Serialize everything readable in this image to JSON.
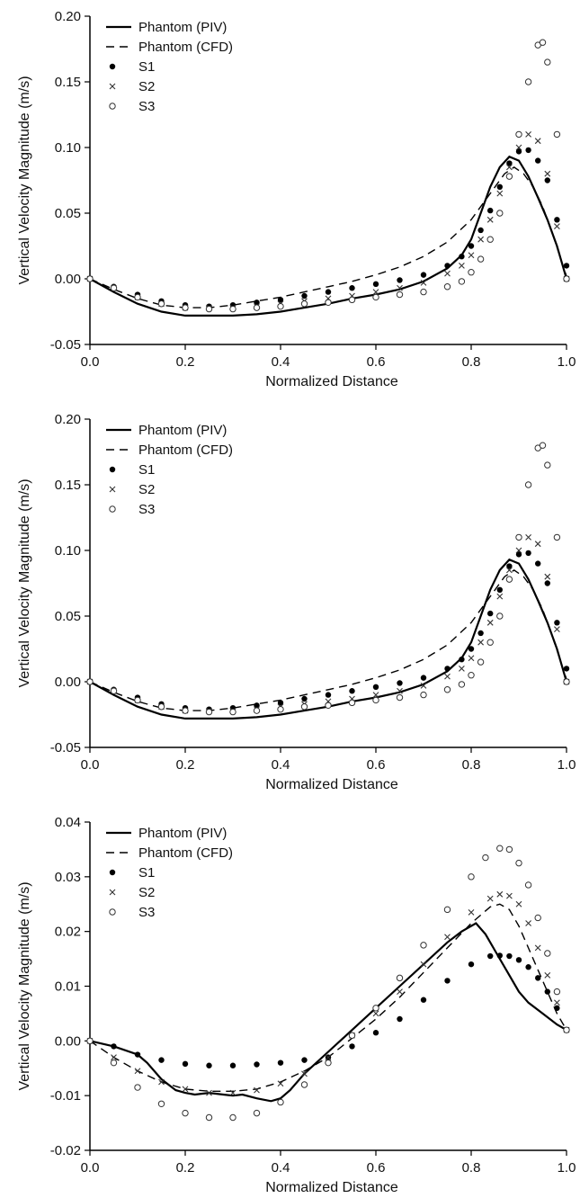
{
  "chart_data": [
    {
      "type": "line",
      "xlabel": "Normalized Distance",
      "ylabel": "Vertical Velocity Magnitude (m/s)",
      "xlim": [
        0,
        1
      ],
      "ylim": [
        -0.05,
        0.2
      ],
      "x_ticks": [
        "0.0",
        "0.2",
        "0.4",
        "0.6",
        "0.8",
        "1.0"
      ],
      "y_ticks": [
        "-0.05",
        "0.00",
        "0.05",
        "0.10",
        "0.15",
        "0.20"
      ],
      "legend_position": "top-left",
      "series": [
        {
          "name": "Phantom (PIV)",
          "style": "solid-line",
          "x": [
            0,
            0.05,
            0.1,
            0.15,
            0.2,
            0.25,
            0.3,
            0.35,
            0.4,
            0.45,
            0.5,
            0.55,
            0.6,
            0.65,
            0.7,
            0.75,
            0.78,
            0.8,
            0.82,
            0.84,
            0.86,
            0.88,
            0.9,
            0.92,
            0.94,
            0.96,
            0.98,
            1.0
          ],
          "y": [
            0,
            -0.01,
            -0.019,
            -0.025,
            -0.028,
            -0.028,
            -0.028,
            -0.027,
            -0.025,
            -0.022,
            -0.019,
            -0.015,
            -0.012,
            -0.008,
            -0.002,
            0.008,
            0.018,
            0.03,
            0.05,
            0.07,
            0.085,
            0.093,
            0.09,
            0.078,
            0.062,
            0.045,
            0.025,
            0.0
          ]
        },
        {
          "name": "Phantom (CFD)",
          "style": "dashed-line",
          "x": [
            0,
            0.05,
            0.1,
            0.15,
            0.2,
            0.25,
            0.3,
            0.35,
            0.4,
            0.45,
            0.5,
            0.55,
            0.6,
            0.65,
            0.7,
            0.75,
            0.8,
            0.84,
            0.87,
            0.89,
            0.91,
            0.93,
            0.95,
            0.97,
            1.0
          ],
          "y": [
            0,
            -0.008,
            -0.015,
            -0.02,
            -0.022,
            -0.022,
            -0.02,
            -0.017,
            -0.014,
            -0.01,
            -0.006,
            -0.002,
            0.003,
            0.009,
            0.017,
            0.028,
            0.045,
            0.065,
            0.08,
            0.085,
            0.08,
            0.07,
            0.055,
            0.035,
            0.002
          ]
        },
        {
          "name": "S1",
          "style": "filled-circle",
          "x": [
            0,
            0.05,
            0.1,
            0.15,
            0.2,
            0.25,
            0.3,
            0.35,
            0.4,
            0.45,
            0.5,
            0.55,
            0.6,
            0.65,
            0.7,
            0.75,
            0.78,
            0.8,
            0.82,
            0.84,
            0.86,
            0.88,
            0.9,
            0.92,
            0.94,
            0.96,
            0.98,
            1.0
          ],
          "y": [
            0,
            -0.006,
            -0.012,
            -0.017,
            -0.02,
            -0.021,
            -0.02,
            -0.018,
            -0.016,
            -0.013,
            -0.01,
            -0.007,
            -0.004,
            -0.001,
            0.003,
            0.01,
            0.017,
            0.025,
            0.037,
            0.052,
            0.07,
            0.088,
            0.097,
            0.098,
            0.09,
            0.075,
            0.045,
            0.01
          ]
        },
        {
          "name": "S2",
          "style": "cross",
          "x": [
            0,
            0.05,
            0.1,
            0.15,
            0.2,
            0.25,
            0.3,
            0.35,
            0.4,
            0.45,
            0.5,
            0.55,
            0.6,
            0.65,
            0.7,
            0.75,
            0.78,
            0.8,
            0.82,
            0.84,
            0.86,
            0.88,
            0.9,
            0.92,
            0.94,
            0.96,
            0.98,
            1.0
          ],
          "y": [
            0,
            -0.007,
            -0.014,
            -0.019,
            -0.022,
            -0.022,
            -0.022,
            -0.021,
            -0.019,
            -0.017,
            -0.015,
            -0.013,
            -0.01,
            -0.007,
            -0.003,
            0.004,
            0.01,
            0.018,
            0.03,
            0.045,
            0.065,
            0.085,
            0.1,
            0.11,
            0.105,
            0.08,
            0.04,
            0.0
          ]
        },
        {
          "name": "S3",
          "style": "open-circle",
          "x": [
            0,
            0.05,
            0.1,
            0.15,
            0.2,
            0.25,
            0.3,
            0.35,
            0.4,
            0.45,
            0.5,
            0.55,
            0.6,
            0.65,
            0.7,
            0.75,
            0.78,
            0.8,
            0.82,
            0.84,
            0.86,
            0.88,
            0.9,
            0.92,
            0.94,
            0.95,
            0.96,
            0.98,
            1.0
          ],
          "y": [
            0,
            -0.007,
            -0.014,
            -0.019,
            -0.022,
            -0.023,
            -0.023,
            -0.022,
            -0.021,
            -0.019,
            -0.018,
            -0.016,
            -0.014,
            -0.012,
            -0.01,
            -0.006,
            -0.002,
            0.005,
            0.015,
            0.03,
            0.05,
            0.078,
            0.11,
            0.15,
            0.178,
            0.18,
            0.165,
            0.11,
            0.0
          ]
        }
      ]
    },
    {
      "type": "line",
      "xlabel": "Normalized Distance",
      "ylabel": "Vertical Velocity Magnitude (m/s)",
      "xlim": [
        0,
        1
      ],
      "ylim": [
        -0.05,
        0.2
      ],
      "x_ticks": [
        "0.0",
        "0.2",
        "0.4",
        "0.6",
        "0.8",
        "1.0"
      ],
      "y_ticks": [
        "-0.05",
        "0.00",
        "0.05",
        "0.10",
        "0.15",
        "0.20"
      ],
      "legend_position": "top-left",
      "series": [
        {
          "name": "Phantom (PIV)",
          "style": "solid-line",
          "x": [
            0,
            0.05,
            0.1,
            0.15,
            0.2,
            0.25,
            0.3,
            0.35,
            0.4,
            0.45,
            0.5,
            0.55,
            0.6,
            0.65,
            0.7,
            0.75,
            0.78,
            0.8,
            0.82,
            0.84,
            0.86,
            0.88,
            0.9,
            0.92,
            0.94,
            0.96,
            0.98,
            1.0
          ],
          "y": [
            0,
            -0.01,
            -0.019,
            -0.025,
            -0.028,
            -0.028,
            -0.028,
            -0.027,
            -0.025,
            -0.022,
            -0.019,
            -0.015,
            -0.012,
            -0.008,
            -0.002,
            0.008,
            0.018,
            0.03,
            0.05,
            0.07,
            0.085,
            0.093,
            0.09,
            0.078,
            0.062,
            0.045,
            0.025,
            0.0
          ]
        },
        {
          "name": "Phantom (CFD)",
          "style": "dashed-line",
          "x": [
            0,
            0.05,
            0.1,
            0.15,
            0.2,
            0.25,
            0.3,
            0.35,
            0.4,
            0.45,
            0.5,
            0.55,
            0.6,
            0.65,
            0.7,
            0.75,
            0.8,
            0.84,
            0.87,
            0.89,
            0.91,
            0.93,
            0.95,
            0.97,
            1.0
          ],
          "y": [
            0,
            -0.008,
            -0.015,
            -0.02,
            -0.022,
            -0.022,
            -0.02,
            -0.017,
            -0.014,
            -0.01,
            -0.006,
            -0.002,
            0.003,
            0.009,
            0.017,
            0.028,
            0.045,
            0.065,
            0.08,
            0.085,
            0.08,
            0.07,
            0.055,
            0.035,
            0.002
          ]
        },
        {
          "name": "S1",
          "style": "filled-circle",
          "x": [
            0,
            0.05,
            0.1,
            0.15,
            0.2,
            0.25,
            0.3,
            0.35,
            0.4,
            0.45,
            0.5,
            0.55,
            0.6,
            0.65,
            0.7,
            0.75,
            0.78,
            0.8,
            0.82,
            0.84,
            0.86,
            0.88,
            0.9,
            0.92,
            0.94,
            0.96,
            0.98,
            1.0
          ],
          "y": [
            0,
            -0.006,
            -0.012,
            -0.017,
            -0.02,
            -0.021,
            -0.02,
            -0.018,
            -0.016,
            -0.013,
            -0.01,
            -0.007,
            -0.004,
            -0.001,
            0.003,
            0.01,
            0.017,
            0.025,
            0.037,
            0.052,
            0.07,
            0.088,
            0.097,
            0.098,
            0.09,
            0.075,
            0.045,
            0.01
          ]
        },
        {
          "name": "S2",
          "style": "cross",
          "x": [
            0,
            0.05,
            0.1,
            0.15,
            0.2,
            0.25,
            0.3,
            0.35,
            0.4,
            0.45,
            0.5,
            0.55,
            0.6,
            0.65,
            0.7,
            0.75,
            0.78,
            0.8,
            0.82,
            0.84,
            0.86,
            0.88,
            0.9,
            0.92,
            0.94,
            0.96,
            0.98,
            1.0
          ],
          "y": [
            0,
            -0.007,
            -0.014,
            -0.019,
            -0.022,
            -0.022,
            -0.022,
            -0.021,
            -0.019,
            -0.017,
            -0.015,
            -0.013,
            -0.01,
            -0.007,
            -0.003,
            0.004,
            0.01,
            0.018,
            0.03,
            0.045,
            0.065,
            0.085,
            0.1,
            0.11,
            0.105,
            0.08,
            0.04,
            0.0
          ]
        },
        {
          "name": "S3",
          "style": "open-circle",
          "x": [
            0,
            0.05,
            0.1,
            0.15,
            0.2,
            0.25,
            0.3,
            0.35,
            0.4,
            0.45,
            0.5,
            0.55,
            0.6,
            0.65,
            0.7,
            0.75,
            0.78,
            0.8,
            0.82,
            0.84,
            0.86,
            0.88,
            0.9,
            0.92,
            0.94,
            0.95,
            0.96,
            0.98,
            1.0
          ],
          "y": [
            0,
            -0.007,
            -0.014,
            -0.019,
            -0.022,
            -0.023,
            -0.023,
            -0.022,
            -0.021,
            -0.019,
            -0.018,
            -0.016,
            -0.014,
            -0.012,
            -0.01,
            -0.006,
            -0.002,
            0.005,
            0.015,
            0.03,
            0.05,
            0.078,
            0.11,
            0.15,
            0.178,
            0.18,
            0.165,
            0.11,
            0.0
          ]
        }
      ]
    },
    {
      "type": "line",
      "xlabel": "Normalized Distance",
      "ylabel": "Vertical Velocity Magnitude (m/s)",
      "xlim": [
        0,
        1
      ],
      "ylim": [
        -0.02,
        0.04
      ],
      "x_ticks": [
        "0.0",
        "0.2",
        "0.4",
        "0.6",
        "0.8",
        "1.0"
      ],
      "y_ticks": [
        "-0.02",
        "-0.01",
        "0.00",
        "0.01",
        "0.02",
        "0.03",
        "0.04"
      ],
      "legend_position": "top-left",
      "series": [
        {
          "name": "Phantom (PIV)",
          "style": "solid-line",
          "x": [
            0,
            0.05,
            0.1,
            0.12,
            0.15,
            0.18,
            0.2,
            0.22,
            0.25,
            0.28,
            0.3,
            0.32,
            0.35,
            0.38,
            0.4,
            0.42,
            0.45,
            0.5,
            0.55,
            0.6,
            0.65,
            0.7,
            0.75,
            0.78,
            0.81,
            0.83,
            0.85,
            0.88,
            0.9,
            0.92,
            0.95,
            0.98,
            1.0
          ],
          "y": [
            0,
            -0.001,
            -0.0025,
            -0.004,
            -0.007,
            -0.009,
            -0.0095,
            -0.0098,
            -0.0095,
            -0.0098,
            -0.01,
            -0.0098,
            -0.0105,
            -0.011,
            -0.0105,
            -0.009,
            -0.006,
            -0.002,
            0.002,
            0.006,
            0.01,
            0.014,
            0.018,
            0.02,
            0.0215,
            0.0195,
            0.0165,
            0.012,
            0.009,
            0.007,
            0.005,
            0.003,
            0.002
          ]
        },
        {
          "name": "Phantom (CFD)",
          "style": "dashed-line",
          "x": [
            0,
            0.05,
            0.1,
            0.15,
            0.2,
            0.25,
            0.3,
            0.35,
            0.4,
            0.45,
            0.5,
            0.55,
            0.6,
            0.65,
            0.7,
            0.75,
            0.8,
            0.84,
            0.86,
            0.88,
            0.9,
            0.92,
            0.94,
            0.96,
            0.98,
            1.0
          ],
          "y": [
            0,
            -0.003,
            -0.0055,
            -0.0075,
            -0.0088,
            -0.0092,
            -0.0092,
            -0.0088,
            -0.0075,
            -0.0055,
            -0.003,
            0.0005,
            0.004,
            0.008,
            0.0125,
            0.017,
            0.0215,
            0.0245,
            0.025,
            0.024,
            0.021,
            0.017,
            0.013,
            0.009,
            0.005,
            0.002
          ]
        },
        {
          "name": "S1",
          "style": "filled-circle",
          "x": [
            0,
            0.05,
            0.1,
            0.15,
            0.2,
            0.25,
            0.3,
            0.35,
            0.4,
            0.45,
            0.5,
            0.55,
            0.6,
            0.65,
            0.7,
            0.75,
            0.8,
            0.84,
            0.86,
            0.88,
            0.9,
            0.92,
            0.94,
            0.96,
            0.98,
            1.0
          ],
          "y": [
            0,
            -0.001,
            -0.0025,
            -0.0035,
            -0.0042,
            -0.0045,
            -0.0045,
            -0.0043,
            -0.004,
            -0.0035,
            -0.003,
            -0.001,
            0.0015,
            0.004,
            0.0075,
            0.011,
            0.014,
            0.0155,
            0.0156,
            0.0155,
            0.0148,
            0.0135,
            0.0115,
            0.009,
            0.006,
            0.002
          ]
        },
        {
          "name": "S2",
          "style": "cross",
          "x": [
            0,
            0.05,
            0.1,
            0.15,
            0.2,
            0.25,
            0.3,
            0.35,
            0.4,
            0.45,
            0.5,
            0.55,
            0.6,
            0.65,
            0.7,
            0.75,
            0.8,
            0.84,
            0.86,
            0.88,
            0.9,
            0.92,
            0.94,
            0.96,
            0.98,
            1.0
          ],
          "y": [
            0,
            -0.003,
            -0.0055,
            -0.0075,
            -0.0088,
            -0.0095,
            -0.0095,
            -0.009,
            -0.0078,
            -0.006,
            -0.003,
            0.001,
            0.005,
            0.009,
            0.014,
            0.019,
            0.0235,
            0.026,
            0.0268,
            0.0265,
            0.025,
            0.0215,
            0.017,
            0.012,
            0.007,
            0.002
          ]
        },
        {
          "name": "S3",
          "style": "open-circle",
          "x": [
            0,
            0.05,
            0.1,
            0.15,
            0.2,
            0.25,
            0.3,
            0.35,
            0.4,
            0.45,
            0.5,
            0.55,
            0.6,
            0.65,
            0.7,
            0.75,
            0.8,
            0.83,
            0.86,
            0.88,
            0.9,
            0.92,
            0.94,
            0.96,
            0.98,
            1.0
          ],
          "y": [
            0,
            -0.004,
            -0.0085,
            -0.0115,
            -0.0132,
            -0.014,
            -0.014,
            -0.0132,
            -0.0112,
            -0.008,
            -0.004,
            0.001,
            0.006,
            0.0115,
            0.0175,
            0.024,
            0.03,
            0.0335,
            0.0352,
            0.035,
            0.0325,
            0.0285,
            0.0225,
            0.016,
            0.009,
            0.002
          ]
        }
      ]
    }
  ]
}
